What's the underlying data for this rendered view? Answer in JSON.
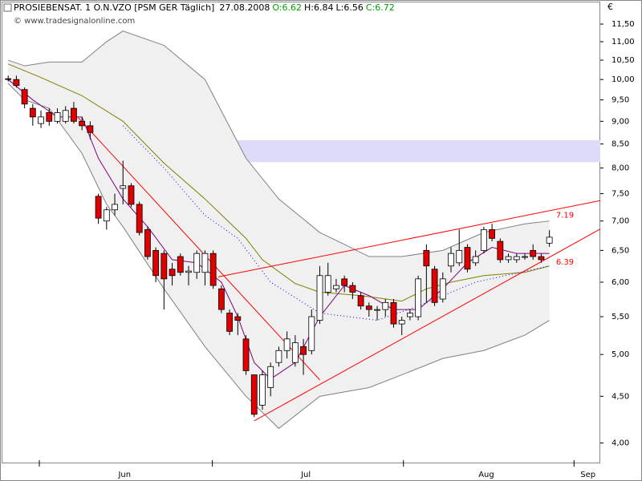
{
  "chart_data": {
    "type": "candlestick",
    "title": "PROSIEBENSAT. 1 O.N.VZO [PSM GER  Täglich]",
    "date": "27.08.2008",
    "ohlc_labels": [
      {
        "text": "O:6.62",
        "color": "#00a000"
      },
      {
        "text": "H:6.84",
        "color": "#000000"
      },
      {
        "text": "L:6.56",
        "color": "#000000"
      },
      {
        "text": "C:6.72",
        "color": "#00a000"
      }
    ],
    "source": "© www.tradesignalonline.com",
    "currency": "€",
    "log_scale": true,
    "up_color": "#ffffff",
    "down_color": "#e00000",
    "x": [
      0,
      1,
      2,
      3,
      4,
      5,
      6,
      7,
      8,
      9,
      10,
      11,
      12,
      13,
      14,
      15,
      16,
      17,
      18,
      19,
      20,
      21,
      22,
      23,
      24,
      25,
      26,
      27,
      28,
      29,
      30,
      31,
      32,
      33,
      34,
      35,
      36,
      37,
      38,
      39,
      40,
      41,
      42,
      43,
      44,
      45,
      46,
      47,
      48,
      49,
      50,
      51,
      52,
      53,
      54,
      55,
      56,
      57,
      58,
      59,
      60,
      61,
      62,
      63,
      64,
      65,
      66
    ],
    "open": [
      10.02,
      10.0,
      9.75,
      9.3,
      8.95,
      9.2,
      9.0,
      9.0,
      9.3,
      9.0,
      8.9,
      7.45,
      7.0,
      7.2,
      7.6,
      7.65,
      7.3,
      6.85,
      6.5,
      6.45,
      6.2,
      6.4,
      6.15,
      6.15,
      6.15,
      6.45,
      5.9,
      5.55,
      5.5,
      5.2,
      4.75,
      4.4,
      4.6,
      4.9,
      5.05,
      4.9,
      5.1,
      5.05,
      5.45,
      5.85,
      5.9,
      6.05,
      5.95,
      5.8,
      5.65,
      5.6,
      5.6,
      5.7,
      5.4,
      5.5,
      5.5,
      6.5,
      6.2,
      5.75,
      6.25,
      6.3,
      6.55,
      6.3,
      6.5,
      6.85,
      6.65,
      6.35,
      6.35,
      6.4,
      6.5,
      6.4,
      6.62
    ],
    "high": [
      10.1,
      10.1,
      9.8,
      9.4,
      9.25,
      9.3,
      9.3,
      9.35,
      9.45,
      9.1,
      9.0,
      7.5,
      7.25,
      7.5,
      8.15,
      7.7,
      7.35,
      6.9,
      6.55,
      6.5,
      6.3,
      6.45,
      6.25,
      6.5,
      6.5,
      6.5,
      5.95,
      5.6,
      5.55,
      5.25,
      4.75,
      4.8,
      4.9,
      5.1,
      5.3,
      5.25,
      5.2,
      5.6,
      6.25,
      6.3,
      6.05,
      6.1,
      6.0,
      5.85,
      5.7,
      5.65,
      5.75,
      5.75,
      5.5,
      5.6,
      6.1,
      6.6,
      6.25,
      6.15,
      6.55,
      6.85,
      6.6,
      6.5,
      6.9,
      6.95,
      6.7,
      6.45,
      6.45,
      6.45,
      6.6,
      6.45,
      6.84
    ],
    "low": [
      9.95,
      9.8,
      9.3,
      8.9,
      8.85,
      8.9,
      8.95,
      8.95,
      8.95,
      8.8,
      8.6,
      6.95,
      6.85,
      7.1,
      7.3,
      7.25,
      6.75,
      6.35,
      6.0,
      5.6,
      5.95,
      6.1,
      5.95,
      6.05,
      5.95,
      5.9,
      5.55,
      5.25,
      5.25,
      4.75,
      4.27,
      4.35,
      4.5,
      4.85,
      4.95,
      4.85,
      4.75,
      5.0,
      5.4,
      5.8,
      5.85,
      5.85,
      5.75,
      5.6,
      5.5,
      5.45,
      5.5,
      5.35,
      5.25,
      5.45,
      5.45,
      5.7,
      5.65,
      5.7,
      6.15,
      6.25,
      6.15,
      6.25,
      6.45,
      6.65,
      6.3,
      6.3,
      6.3,
      6.35,
      6.35,
      6.3,
      6.56
    ],
    "close": [
      10.0,
      9.85,
      9.4,
      9.1,
      9.1,
      9.0,
      9.2,
      9.25,
      9.0,
      8.9,
      8.75,
      7.05,
      7.2,
      7.3,
      7.65,
      7.3,
      6.8,
      6.4,
      6.1,
      6.05,
      6.1,
      6.15,
      6.17,
      6.45,
      6.45,
      5.95,
      5.6,
      5.3,
      5.45,
      4.8,
      4.3,
      4.75,
      4.85,
      5.05,
      5.2,
      5.15,
      5.0,
      5.5,
      6.1,
      6.1,
      5.95,
      5.95,
      5.85,
      5.65,
      5.6,
      5.6,
      5.7,
      5.4,
      5.45,
      5.55,
      6.05,
      6.25,
      5.7,
      6.05,
      6.45,
      6.5,
      6.2,
      6.4,
      6.85,
      6.7,
      6.35,
      6.4,
      6.4,
      6.4,
      6.4,
      6.35,
      6.72
    ],
    "xlim": [
      -0.8,
      72.2
    ],
    "ylim": [
      3.8,
      12.17
    ],
    "yticks": [
      {
        "value": 4,
        "label": "4,00"
      },
      {
        "value": 4.5,
        "label": "4,50"
      },
      {
        "value": 5,
        "label": "5,00"
      },
      {
        "value": 5.5,
        "label": "5,50"
      },
      {
        "value": 6,
        "label": "6,00"
      },
      {
        "value": 6.5,
        "label": "6,50"
      },
      {
        "value": 7,
        "label": "7,00"
      },
      {
        "value": 7.5,
        "label": "7,50"
      },
      {
        "value": 8,
        "label": "8,00"
      },
      {
        "value": 8.5,
        "label": "8,50"
      },
      {
        "value": 9,
        "label": "9,00"
      },
      {
        "value": 9.5,
        "label": "9,50"
      },
      {
        "value": 10,
        "label": "10,00"
      },
      {
        "value": 10.5,
        "label": "10,50"
      },
      {
        "value": 11,
        "label": "11,00"
      },
      {
        "value": 11.5,
        "label": "11,50"
      }
    ],
    "xticks": [
      {
        "value": 14.2,
        "label": "Jun"
      },
      {
        "value": 36.3,
        "label": "Jul"
      },
      {
        "value": 58.3,
        "label": "Aug"
      },
      {
        "value": 70.7,
        "label": "Sep"
      }
    ],
    "month_starts": [
      3.8,
      24.9,
      48.2,
      69
    ],
    "zone": {
      "x": [
        9.8,
        72.2
      ],
      "values": [
        8.12,
        8.58
      ],
      "color": "#dcdcfa"
    },
    "bands": {
      "x": [
        0,
        2,
        5,
        9,
        12,
        14,
        19,
        24,
        29,
        33,
        38,
        41,
        44,
        48,
        53,
        58,
        63,
        66
      ],
      "upper": [
        10.5,
        10.35,
        10.45,
        10.45,
        11.0,
        11.3,
        10.9,
        10.0,
        8.2,
        7.4,
        6.8,
        6.6,
        6.4,
        6.4,
        6.5,
        6.8,
        6.95,
        7.0
      ],
      "lower": [
        9.9,
        9.5,
        9.3,
        8.3,
        7.3,
        6.9,
        5.9,
        5.1,
        4.5,
        4.15,
        4.5,
        4.55,
        4.6,
        4.75,
        4.95,
        5.05,
        5.25,
        5.45
      ],
      "color": "#808080",
      "fill": "#f0f0f0"
    },
    "lines": [
      {
        "color": "#808000",
        "style": "solid",
        "x": [
          0,
          4,
          9,
          14,
          19,
          24,
          29,
          31,
          35,
          38,
          43,
          48,
          51,
          54,
          58,
          63,
          66
        ],
        "values": [
          10.4,
          10.05,
          9.6,
          9.0,
          8.1,
          7.4,
          6.7,
          6.35,
          5.98,
          5.85,
          5.8,
          5.72,
          5.9,
          6.0,
          6.1,
          6.15,
          6.25
        ]
      },
      {
        "color": "#0000ff",
        "style": "dotted",
        "x": [
          14,
          19,
          24,
          28,
          32,
          38,
          45,
          50,
          57,
          66
        ],
        "values": [
          8.9,
          8.0,
          7.1,
          6.7,
          6.0,
          5.55,
          5.45,
          5.65,
          6.0,
          6.25
        ]
      },
      {
        "color": "#800080",
        "style": "solid",
        "x": [
          0,
          3,
          6,
          9,
          11,
          14,
          17,
          20,
          23,
          26,
          28,
          30,
          32,
          35,
          38,
          41,
          44,
          47,
          50,
          53,
          56,
          59,
          62,
          66
        ],
        "values": [
          10.0,
          9.5,
          9.1,
          9.1,
          8.2,
          7.4,
          6.9,
          6.35,
          6.3,
          6.0,
          5.5,
          4.9,
          4.7,
          4.9,
          5.5,
          5.95,
          5.8,
          5.6,
          5.6,
          5.9,
          6.3,
          6.55,
          6.45,
          6.45
        ]
      }
    ],
    "trendlines": [
      {
        "color": "#ff0000",
        "x": [
          8.5,
          38
        ],
        "values": [
          9.09,
          4.69
        ]
      },
      {
        "color": "#ff0000",
        "x": [
          25.6,
          72.2
        ],
        "values": [
          6.08,
          7.37
        ]
      },
      {
        "color": "#ff0000",
        "x": [
          30,
          72.2
        ],
        "values": [
          4.23,
          6.86
        ]
      }
    ],
    "price_labels": {
      "x": [
        66.8,
        66.8
      ],
      "values": [
        7.19,
        6.39
      ],
      "color": "#ff0000"
    }
  }
}
